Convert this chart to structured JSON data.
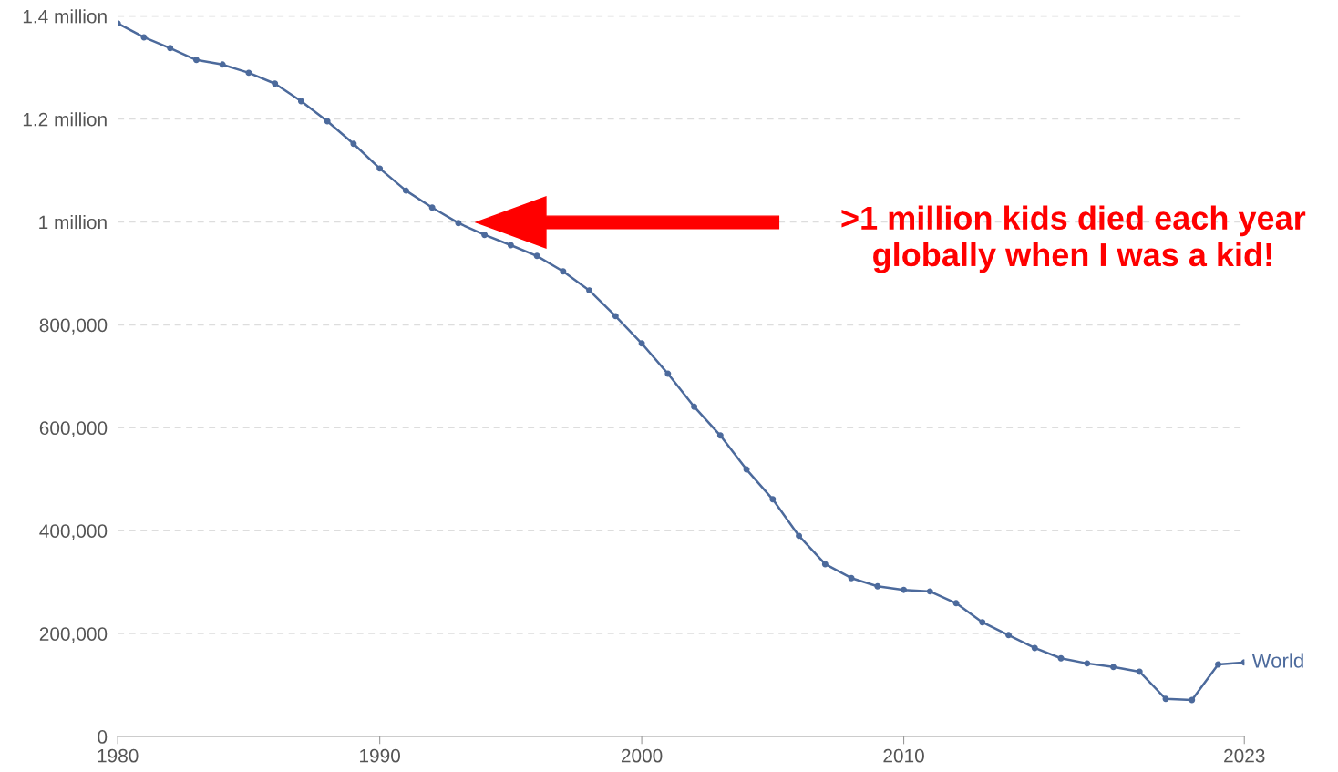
{
  "chart_data": {
    "type": "line",
    "x": [
      1980,
      1981,
      1982,
      1983,
      1984,
      1985,
      1986,
      1987,
      1988,
      1989,
      1990,
      1991,
      1992,
      1993,
      1994,
      1995,
      1996,
      1997,
      1998,
      1999,
      2000,
      2001,
      2002,
      2003,
      2004,
      2005,
      2006,
      2007,
      2008,
      2009,
      2010,
      2011,
      2012,
      2013,
      2014,
      2015,
      2016,
      2017,
      2018,
      2019,
      2020,
      2021,
      2022,
      2023
    ],
    "series": [
      {
        "name": "World",
        "color": "#4c6a9c",
        "values": [
          1386000,
          1359000,
          1338000,
          1315000,
          1306000,
          1290000,
          1269000,
          1235000,
          1196000,
          1152000,
          1104000,
          1061000,
          1028000,
          998000,
          975000,
          955000,
          934000,
          904000,
          867000,
          817000,
          764000,
          705000,
          641000,
          585000,
          519000,
          461000,
          390000,
          335000,
          308000,
          292000,
          285000,
          282000,
          259000,
          222000,
          197000,
          172000,
          152000,
          142000,
          135000,
          126000,
          73000,
          71000,
          140000,
          144000
        ]
      }
    ],
    "xlim": [
      1980,
      2023
    ],
    "xticks": [
      1980,
      1990,
      2000,
      2010,
      2023
    ],
    "ylim": [
      0,
      1400000
    ],
    "yticks": [
      0,
      {
        "value": 200000,
        "label": "200,000"
      },
      {
        "value": 400000,
        "label": "400,000"
      },
      {
        "value": 600000,
        "label": "600,000"
      },
      {
        "value": 800000,
        "label": "800,000"
      },
      {
        "value": 1000000,
        "label": "1 million"
      },
      {
        "value": 1200000,
        "label": "1.2 million"
      },
      {
        "value": 1400000,
        "label": "1.4 million"
      }
    ],
    "grid": "y",
    "marker": "circle",
    "line_style": "solid",
    "annotations": [
      ">1 million kids died each year\nglobally when I was a kid!"
    ]
  }
}
